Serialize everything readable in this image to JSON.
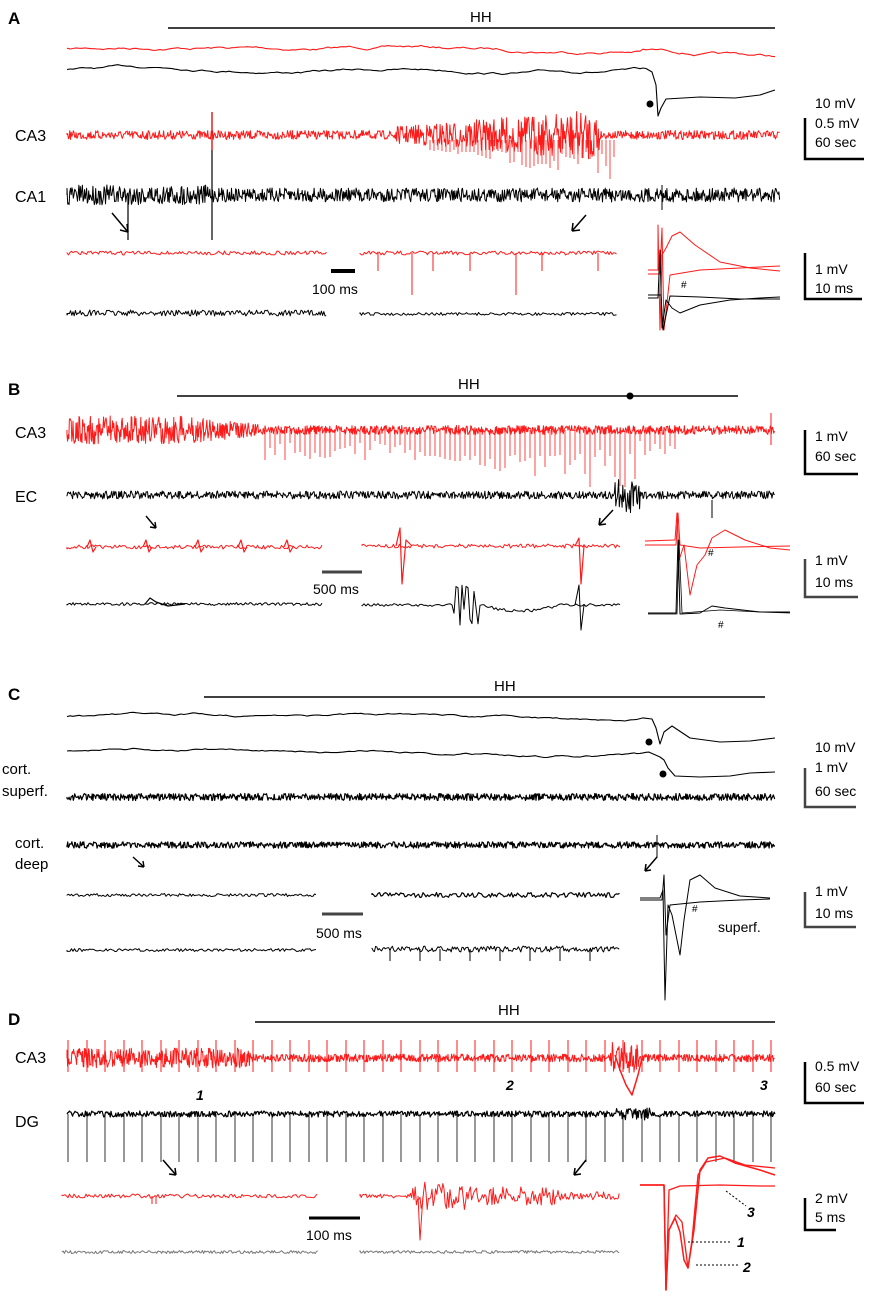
{
  "colors": {
    "red": "#ff1a1a",
    "black": "#000000"
  },
  "panels": [
    {
      "letter": "A",
      "hh_label": "HH",
      "channel_labels": [
        "CA3",
        "CA1"
      ],
      "scale_upper": [
        "10 mV",
        "0.5 mV",
        "60 sec"
      ],
      "inset_time_bar": "100 ms",
      "scale_lower": [
        "1 mV",
        "10 ms"
      ],
      "markers": [
        "#"
      ]
    },
    {
      "letter": "B",
      "hh_label": "HH",
      "channel_labels": [
        "CA3",
        "EC"
      ],
      "scale_upper": [
        "1 mV",
        "60 sec"
      ],
      "inset_time_bar": "500 ms",
      "scale_lower": [
        "1 mV",
        "10 ms"
      ],
      "markers": [
        "#",
        "#"
      ]
    },
    {
      "letter": "C",
      "hh_label": "HH",
      "channel_labels": [
        "cort.",
        "superf.",
        "cort.",
        "deep"
      ],
      "scale_upper": [
        "10 mV",
        "1 mV",
        "60 sec"
      ],
      "inset_time_bar": "500 ms",
      "scale_lower": [
        "1 mV",
        "10 ms"
      ],
      "markers": [
        "#"
      ],
      "superf_label": "superf."
    },
    {
      "letter": "D",
      "hh_label": "HH",
      "channel_labels": [
        "CA3",
        "DG"
      ],
      "scale_upper": [
        "0.5 mV",
        "60 sec"
      ],
      "inset_time_bar": "100 ms",
      "scale_lower": [
        "2 mV",
        "5 ms"
      ],
      "event_numbers": [
        "1",
        "2",
        "3"
      ],
      "overlay_numbers": [
        "3",
        "1",
        "2"
      ]
    }
  ],
  "chart_data": {
    "type": "line",
    "panels": [
      {
        "panel": "A",
        "series": [
          {
            "name": "CA3",
            "color": "#ff1a1a"
          },
          {
            "name": "CA1",
            "color": "#000000"
          }
        ]
      },
      {
        "panel": "B",
        "series": [
          {
            "name": "CA3",
            "color": "#ff1a1a"
          },
          {
            "name": "EC",
            "color": "#000000"
          }
        ]
      },
      {
        "panel": "C",
        "series": [
          {
            "name": "cort. superf.",
            "color": "#000000"
          },
          {
            "name": "cort. deep",
            "color": "#000000"
          }
        ]
      },
      {
        "panel": "D",
        "series": [
          {
            "name": "CA3",
            "color": "#ff1a1a"
          },
          {
            "name": "DG",
            "color": "#000000"
          }
        ]
      }
    ]
  }
}
